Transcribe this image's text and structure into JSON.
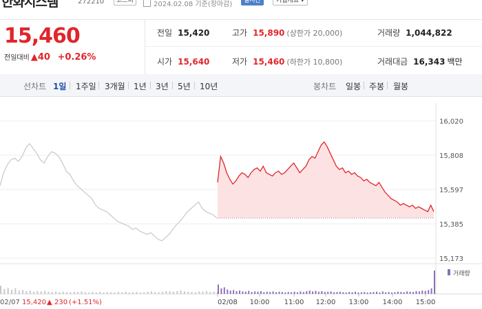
{
  "header": {
    "name": "한화시스템",
    "code": "272210",
    "market": "코스피",
    "date": "2024.02.08 기준(장마감)",
    "live_label": "실시간",
    "company_info_label": "기업개요 ▾"
  },
  "summary": {
    "price": "15,460",
    "change_label": "전일대비",
    "change_sign": "▲",
    "change_value": "40",
    "change_rate": "+0.26%",
    "prev_close_label": "전일",
    "prev_close": "15,420",
    "high_label": "고가",
    "high": "15,890",
    "high_sub": "(상한가 20,000)",
    "volume_label": "거래량",
    "volume": "1,044,822",
    "open_label": "시가",
    "open": "15,640",
    "low_label": "저가",
    "low": "15,460",
    "low_sub": "(하한가 10,800)",
    "amount_label": "거래대금",
    "amount": "16,343",
    "amount_unit": "백만"
  },
  "tabs": {
    "line_label": "선차트",
    "periods": [
      "1일",
      "1주일",
      "3개월",
      "1년",
      "3년",
      "5년",
      "10년"
    ],
    "active": "1일",
    "candle_label": "봉차트",
    "candles": [
      "일봉",
      "주봉",
      "월봉"
    ]
  },
  "colors": {
    "up": "#e0262b",
    "down": "#1f4ea8",
    "prev_line": "#c8c8c8",
    "fill": "#fde2e3",
    "volume_prev": "#c8c8c8",
    "volume_today": "#8a6fb8"
  },
  "chart_data": {
    "type": "line",
    "y_ticks": [
      16020,
      15808,
      15597,
      15385,
      15173
    ],
    "ylim": [
      15173,
      16020
    ],
    "x_labels": [
      "02/08",
      "10:00",
      "11:00",
      "12:00",
      "13:00",
      "14:00",
      "15:00"
    ],
    "previous_day_label": "02/07",
    "previous_day_close": "15,420",
    "previous_day_change": "230",
    "previous_day_rate": "(+1.51%)",
    "volume_label": "거래량",
    "baseline": 15420,
    "series": [
      {
        "day": "02/07",
        "values": [
          15620,
          15700,
          15750,
          15780,
          15790,
          15770,
          15800,
          15850,
          15880,
          15850,
          15820,
          15780,
          15760,
          15800,
          15830,
          15820,
          15800,
          15760,
          15710,
          15690,
          15650,
          15620,
          15600,
          15580,
          15560,
          15540,
          15500,
          15480,
          15470,
          15460,
          15440,
          15420,
          15400,
          15390,
          15380,
          15370,
          15350,
          15360,
          15340,
          15330,
          15320,
          15330,
          15310,
          15290,
          15280,
          15300,
          15320,
          15350,
          15380,
          15400,
          15430,
          15460,
          15480,
          15500,
          15520,
          15480,
          15460,
          15450,
          15440,
          15420
        ]
      },
      {
        "day": "02/08",
        "values": [
          15640,
          15800,
          15760,
          15700,
          15660,
          15630,
          15650,
          15680,
          15700,
          15690,
          15670,
          15700,
          15720,
          15730,
          15710,
          15740,
          15700,
          15690,
          15680,
          15700,
          15710,
          15690,
          15700,
          15720,
          15740,
          15760,
          15730,
          15700,
          15720,
          15740,
          15780,
          15800,
          15790,
          15830,
          15870,
          15890,
          15860,
          15820,
          15780,
          15740,
          15720,
          15730,
          15700,
          15710,
          15690,
          15700,
          15680,
          15670,
          15650,
          15660,
          15640,
          15630,
          15620,
          15640,
          15610,
          15580,
          15560,
          15540,
          15530,
          15520,
          15500,
          15510,
          15500,
          15490,
          15500,
          15480,
          15490,
          15480,
          15470,
          15460,
          15500,
          15460
        ]
      }
    ],
    "volume": {
      "02/07": [
        30,
        18,
        22,
        15,
        20,
        12,
        14,
        10,
        12,
        8,
        10,
        9,
        11,
        8,
        7,
        9,
        6,
        8,
        7,
        6,
        8,
        7,
        9,
        6,
        5,
        7,
        6,
        8,
        5,
        7,
        6,
        5,
        7,
        6,
        8,
        5,
        6,
        7,
        5,
        6,
        8,
        9,
        7,
        6,
        8,
        10,
        9,
        8,
        10,
        12,
        9,
        8,
        7,
        6,
        9,
        8,
        10,
        7,
        9,
        8
      ],
      "02/08": [
        34,
        20,
        24,
        16,
        12,
        14,
        10,
        12,
        9,
        8,
        11,
        7,
        9,
        8,
        10,
        6,
        8,
        7,
        9,
        6,
        8,
        7,
        5,
        7,
        6,
        8,
        6,
        9,
        7,
        10,
        12,
        9,
        11,
        8,
        10,
        7,
        8,
        9,
        6,
        7,
        8,
        6,
        5,
        7,
        6,
        8,
        5,
        6,
        7,
        5,
        6,
        7,
        8,
        5,
        9,
        6,
        7,
        5,
        6,
        8,
        7,
        6,
        9,
        8,
        7,
        10,
        9,
        12,
        11,
        14,
        20,
        85
      ]
    }
  }
}
